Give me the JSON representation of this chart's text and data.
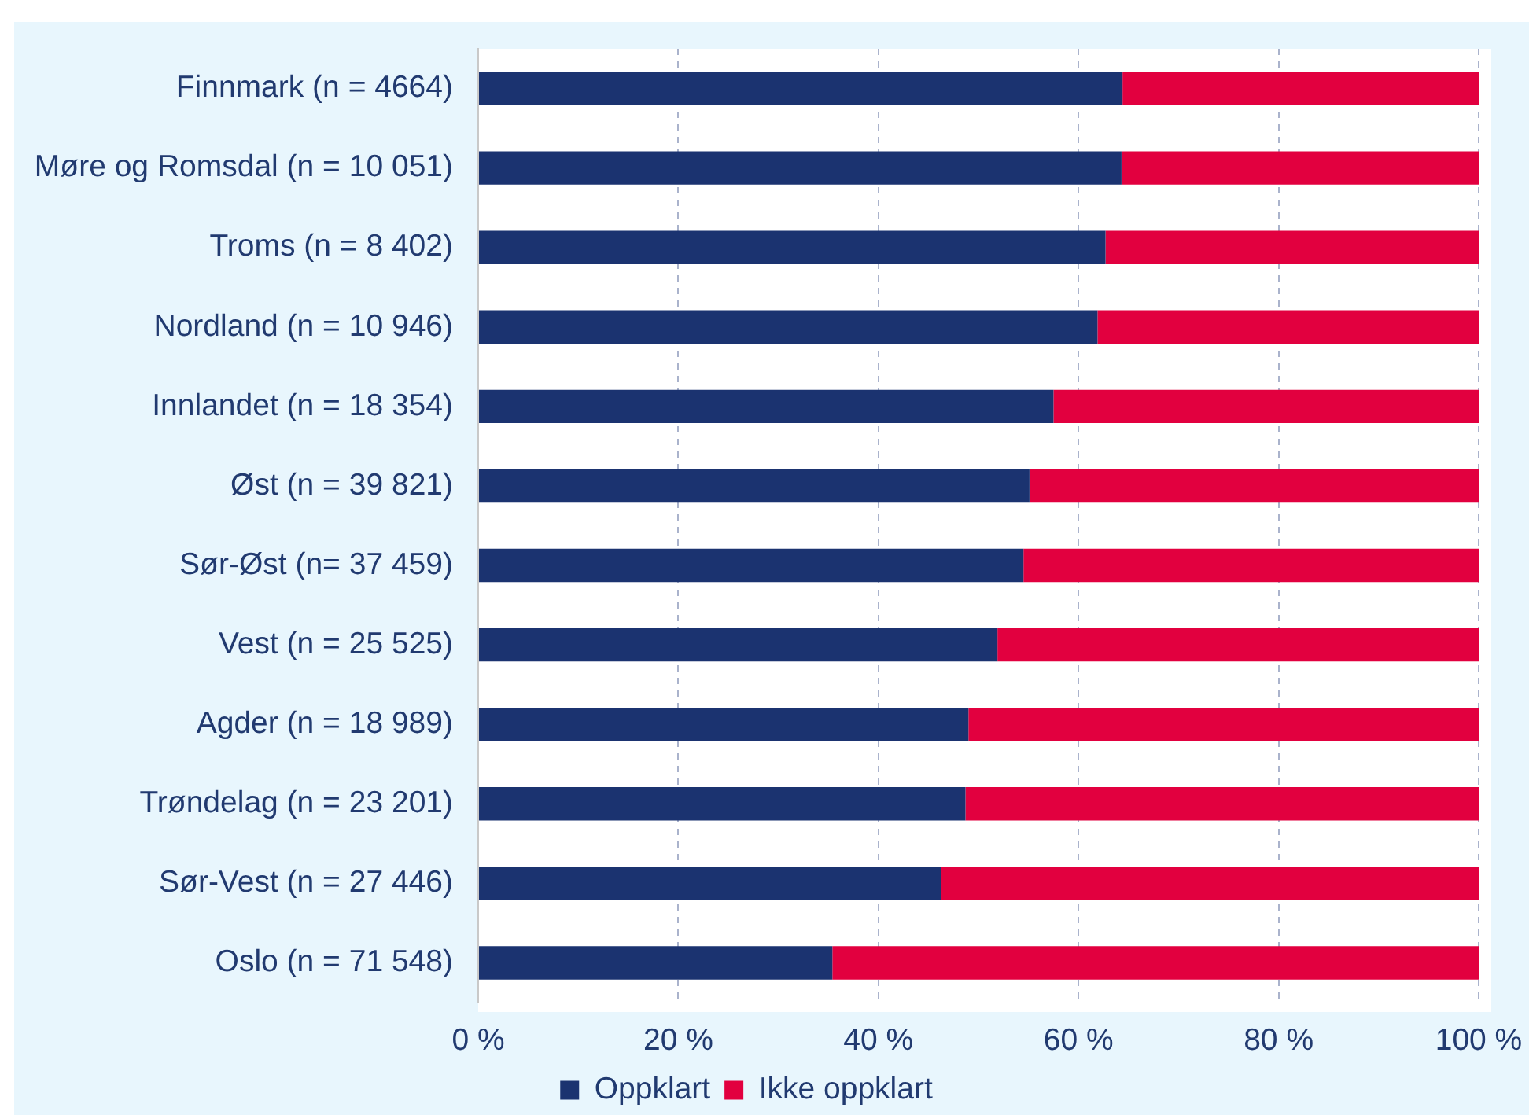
{
  "chart_data": {
    "type": "bar",
    "orientation": "horizontal",
    "stacked": true,
    "categories": [
      "Finnmark (n = 4664)",
      "Møre og Romsdal (n = 10 051)",
      "Troms (n = 8 402)",
      "Nordland (n = 10 946)",
      "Innlandet (n = 18 354)",
      "Øst (n = 39 821)",
      "Sør-Øst (n= 37 459)",
      "Vest (n = 25 525)",
      "Agder (n = 18 989)",
      "Trøndelag (n = 23 201)",
      "Sør-Vest (n = 27 446)",
      "Oslo (n = 71 548)"
    ],
    "series": [
      {
        "name": "Oppklart",
        "color": "#1b3370",
        "values": [
          64.4,
          64.3,
          62.7,
          61.9,
          57.5,
          55.1,
          54.5,
          51.9,
          49.0,
          48.7,
          46.3,
          35.4
        ]
      },
      {
        "name": "Ikke oppklart",
        "color": "#e2003f",
        "values": [
          35.6,
          35.7,
          37.3,
          38.1,
          42.5,
          44.9,
          45.5,
          48.1,
          51.0,
          51.3,
          53.7,
          64.6
        ]
      }
    ],
    "xlim": [
      0,
      100
    ],
    "xticks": [
      {
        "value": 0,
        "label": "0 %"
      },
      {
        "value": 20,
        "label": "20 %"
      },
      {
        "value": 40,
        "label": "40 %"
      },
      {
        "value": 60,
        "label": "60 %"
      },
      {
        "value": 80,
        "label": "80 %"
      },
      {
        "value": 100,
        "label": "100 %"
      }
    ],
    "grid": "x",
    "legend": "bottom"
  }
}
